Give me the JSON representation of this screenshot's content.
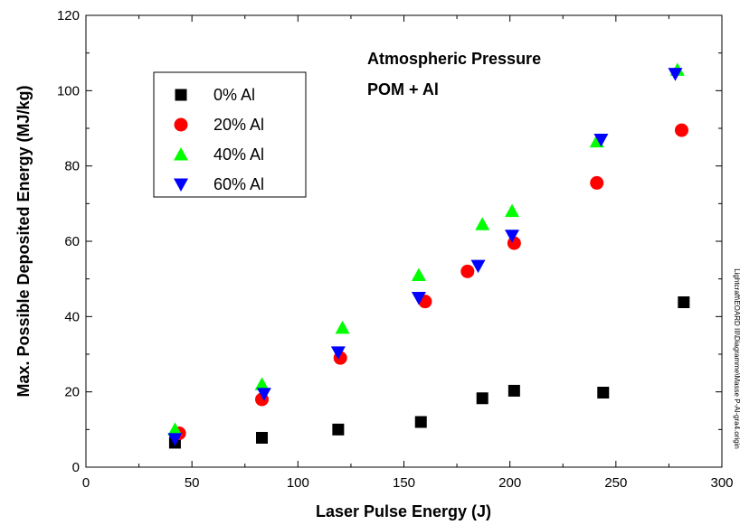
{
  "chart_data": {
    "type": "scatter",
    "xlabel": "Laser Pulse Energy (J)",
    "ylabel": "Max. Possible Deposited Energy (MJ/kg)",
    "xlim": [
      0,
      300
    ],
    "ylim": [
      0,
      120
    ],
    "xticks": [
      0,
      50,
      100,
      150,
      200,
      250,
      300
    ],
    "yticks": [
      0,
      20,
      40,
      60,
      80,
      100,
      120
    ],
    "grid": false,
    "legend_position": "upper-left",
    "annotations": [
      "Atmospheric Pressure",
      "POM + Al"
    ],
    "side_note": "Lightcraft\\EOARD III\\Diagramme\\Masse P-Al-gra4.origin",
    "series": [
      {
        "name": "0% Al",
        "marker": "square",
        "color": "#000000",
        "points": [
          [
            42,
            6.5
          ],
          [
            83,
            7.8
          ],
          [
            119,
            10
          ],
          [
            158,
            12
          ],
          [
            187,
            18.3
          ],
          [
            202,
            20.3
          ],
          [
            244,
            19.8
          ],
          [
            282,
            43.8
          ]
        ]
      },
      {
        "name": "20% Al",
        "marker": "circle",
        "color": "#ff0000",
        "points": [
          [
            44,
            9
          ],
          [
            83,
            18
          ],
          [
            120,
            29
          ],
          [
            160,
            44
          ],
          [
            180,
            52
          ],
          [
            202,
            59.5
          ],
          [
            241,
            75.5
          ],
          [
            281,
            89.5
          ]
        ]
      },
      {
        "name": "40% Al",
        "marker": "triangle-up",
        "color": "#00ff00",
        "points": [
          [
            42,
            10
          ],
          [
            83,
            22
          ],
          [
            121,
            37
          ],
          [
            157,
            51
          ],
          [
            187,
            64.5
          ],
          [
            201,
            68
          ],
          [
            241,
            86.5
          ],
          [
            279,
            105.5
          ]
        ]
      },
      {
        "name": "60% Al",
        "marker": "triangle-down",
        "color": "#0000ff",
        "points": [
          [
            42,
            7.5
          ],
          [
            84,
            19.5
          ],
          [
            119,
            30.5
          ],
          [
            157,
            45
          ],
          [
            185,
            53.5
          ],
          [
            201,
            61.5
          ],
          [
            243,
            87
          ],
          [
            278,
            104.5
          ]
        ]
      }
    ]
  }
}
